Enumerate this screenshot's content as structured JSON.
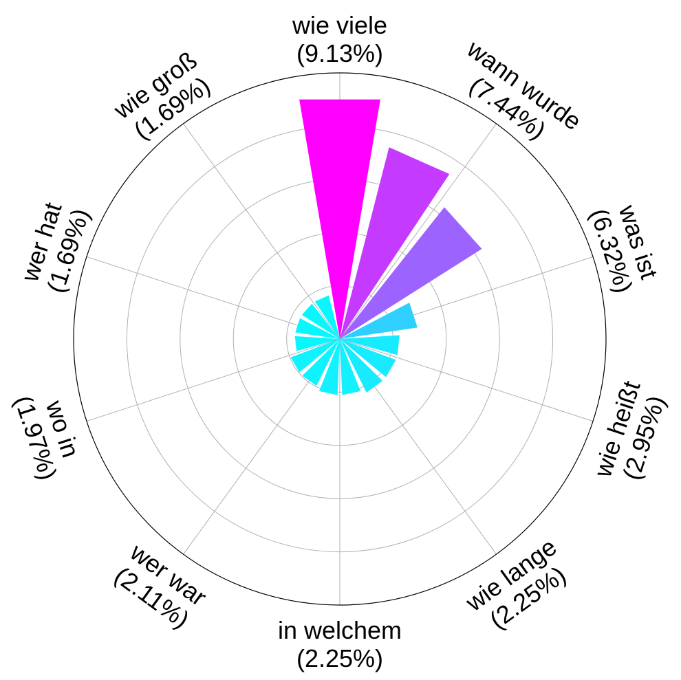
{
  "chart_data": {
    "type": "polar-bar",
    "title": "",
    "grid": true,
    "rmax": 10.0,
    "rticks": [
      2,
      4,
      6,
      8,
      10
    ],
    "categories": [
      "wie viele",
      "wann wurde",
      "was ist",
      "wie heißt",
      "wie lange",
      "in welchem",
      "wer war",
      "wo in",
      "wer hat",
      "wie groß"
    ],
    "labels": [
      {
        "name": "wie viele",
        "pct": "(9.13%)"
      },
      {
        "name": "wann wurde",
        "pct": "(7.44%)"
      },
      {
        "name": "was ist",
        "pct": "(6.32%)"
      },
      {
        "name": "wie heißt",
        "pct": "(2.95%)"
      },
      {
        "name": "wie lange",
        "pct": "(2.25%)"
      },
      {
        "name": "in welchem",
        "pct": "(2.25%)"
      },
      {
        "name": "wer war",
        "pct": "(2.11%)"
      },
      {
        "name": "wo in",
        "pct": "(1.97%)"
      },
      {
        "name": "wer hat",
        "pct": "(1.69%)"
      },
      {
        "name": "wie groß",
        "pct": "(1.69%)"
      }
    ],
    "bars": [
      {
        "label": "wie viele",
        "value": 9.13,
        "color": "#ff00ff"
      },
      {
        "label": "wann wurde",
        "value": 7.44,
        "color": "#c53aff"
      },
      {
        "label": "was ist",
        "value": 6.32,
        "color": "#9c63ff"
      },
      {
        "label": "wie heißt",
        "value": 2.95,
        "color": "#2fd0ff"
      },
      {
        "label": "wie lange",
        "value": 2.25,
        "color": "#18ebff"
      },
      {
        "label": "",
        "value": 2.25,
        "color": "#18ebff"
      },
      {
        "label": "in welchem",
        "value": 2.25,
        "color": "#18ebff"
      },
      {
        "label": "",
        "value": 2.11,
        "color": "#13f0ff"
      },
      {
        "label": "wer war",
        "value": 2.11,
        "color": "#13f0ff"
      },
      {
        "label": "",
        "value": 1.97,
        "color": "#0ef3ff"
      },
      {
        "label": "wo in",
        "value": 1.97,
        "color": "#0ef3ff"
      },
      {
        "label": "",
        "value": 1.69,
        "color": "#08f7ff"
      },
      {
        "label": "wer hat",
        "value": 1.69,
        "color": "#08f7ff"
      },
      {
        "label": "",
        "value": 1.69,
        "color": "#08f7ff"
      },
      {
        "label": "wie groß",
        "value": 1.69,
        "color": "#08f7ff"
      }
    ]
  }
}
